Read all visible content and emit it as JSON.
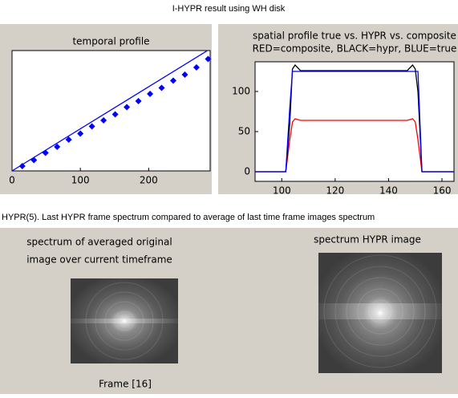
{
  "header": {
    "title": "I-HYPR result using WH disk"
  },
  "chart_data": [
    {
      "type": "line",
      "title": "temporal profile",
      "xlim": [
        0,
        290
      ],
      "xticks": [
        0,
        100,
        200
      ],
      "ylim": [
        0,
        1
      ],
      "series": [
        {
          "color": "#0000ff",
          "style": "line",
          "x": [
            0,
            286
          ],
          "values": [
            0,
            1
          ]
        },
        {
          "color": "#0000ff",
          "style": "diamond",
          "x": [
            15,
            32,
            49,
            66,
            83,
            100,
            117,
            134,
            151,
            168,
            185,
            202,
            219,
            236,
            253,
            270,
            287
          ],
          "values": [
            0.04,
            0.09,
            0.15,
            0.2,
            0.26,
            0.31,
            0.37,
            0.42,
            0.47,
            0.53,
            0.58,
            0.64,
            0.69,
            0.75,
            0.8,
            0.86,
            0.93
          ]
        }
      ]
    },
    {
      "type": "line",
      "title": [
        "spatial profile true vs. HYPR vs. composite",
        "RED=composite, BLACK=hypr, BLUE=true"
      ],
      "xlim": [
        90,
        164.5
      ],
      "xticks": [
        100,
        120,
        140,
        160
      ],
      "ylim": [
        -12,
        137
      ],
      "yticks": [
        0,
        50,
        100
      ],
      "x": [
        90,
        101.5,
        103,
        104,
        105,
        107,
        147,
        149,
        150,
        151,
        152.5,
        164.5
      ],
      "series": [
        {
          "color": "#ff0000",
          "values": [
            0,
            0,
            40,
            62,
            66,
            64,
            64,
            66,
            62,
            40,
            0,
            0
          ]
        },
        {
          "color": "#000000",
          "values": [
            0,
            0,
            60,
            128,
            133,
            126,
            126,
            133,
            128,
            100,
            0,
            0
          ]
        },
        {
          "color": "#0000ff",
          "values": [
            0,
            0,
            80,
            125,
            125,
            125,
            125,
            125,
            125,
            125,
            0,
            0
          ]
        }
      ]
    }
  ],
  "caption": "HYPR(5). Last HYPR frame spectrum compared to average of last time frame images spectrum",
  "spectra": {
    "left_title": [
      "spectrum of averaged original",
      "image over current timeframe"
    ],
    "left_footer": "Frame [16]",
    "right_title": "spectrum HYPR image"
  }
}
